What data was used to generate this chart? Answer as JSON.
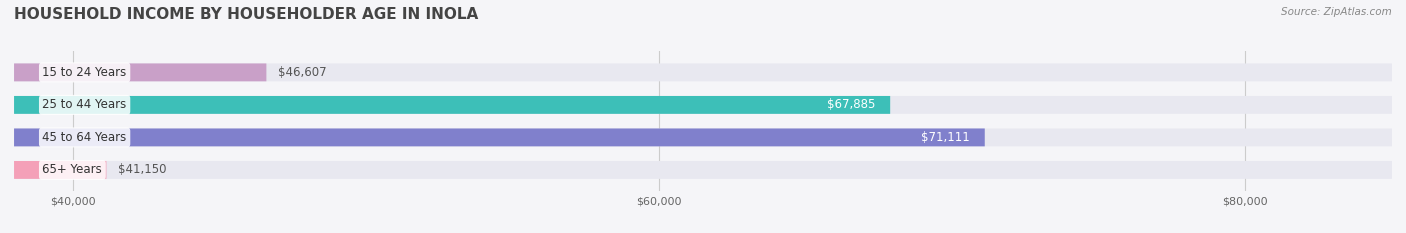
{
  "title": "HOUSEHOLD INCOME BY HOUSEHOLDER AGE IN INOLA",
  "source": "Source: ZipAtlas.com",
  "categories": [
    "15 to 24 Years",
    "25 to 44 Years",
    "45 to 64 Years",
    "65+ Years"
  ],
  "values": [
    46607,
    67885,
    71111,
    41150
  ],
  "bar_colors": [
    "#c9a0c8",
    "#3dbfb8",
    "#8080cc",
    "#f4a0b8"
  ],
  "bar_bg_color": "#e8e8f0",
  "label_colors": [
    "#555555",
    "#ffffff",
    "#ffffff",
    "#555555"
  ],
  "x_ticks": [
    40000,
    60000,
    80000
  ],
  "x_tick_labels": [
    "$40,000",
    "$60,000",
    "$80,000"
  ],
  "xlim": [
    38000,
    85000
  ],
  "background_color": "#f5f5f8",
  "title_color": "#444444",
  "title_fontsize": 11,
  "bar_height": 0.55,
  "value_labels": [
    "$46,607",
    "$67,885",
    "$71,111",
    "$41,150"
  ]
}
